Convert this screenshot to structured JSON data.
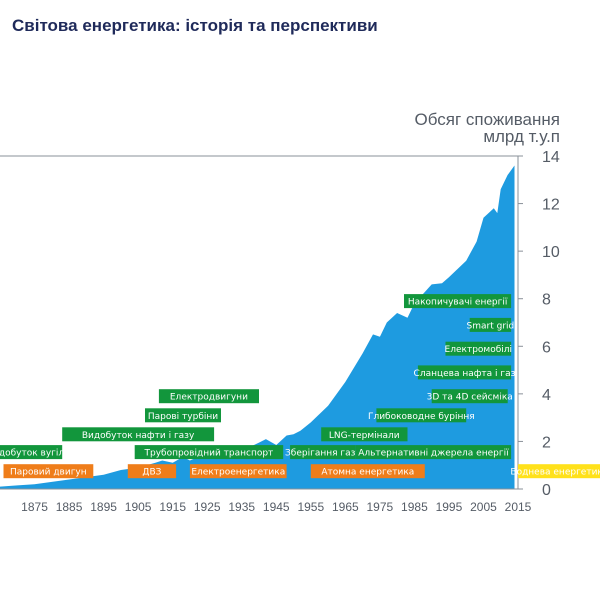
{
  "page": {
    "title": "Світова енергетика: історія та перспективи"
  },
  "chart_data": {
    "type": "area",
    "ylabel_lines": [
      "Обсяг споживання",
      "млрд  т.у.п"
    ],
    "xlim": [
      1865,
      2015
    ],
    "ylim": [
      0,
      14
    ],
    "x_ticks": [
      1875,
      1885,
      1895,
      1905,
      1915,
      1925,
      1935,
      1945,
      1955,
      1965,
      1975,
      1985,
      1995,
      2005,
      2015
    ],
    "y_ticks": [
      0,
      2,
      4,
      6,
      8,
      10,
      12,
      14
    ],
    "grid": false,
    "series": [
      {
        "color": "#1e9be0",
        "x": [
          1865,
          1870,
          1875,
          1880,
          1885,
          1890,
          1895,
          1900,
          1905,
          1910,
          1912,
          1915,
          1918,
          1920,
          1925,
          1930,
          1932,
          1935,
          1940,
          1942,
          1945,
          1948,
          1950,
          1952,
          1955,
          1960,
          1965,
          1970,
          1973,
          1975,
          1977,
          1980,
          1983,
          1985,
          1990,
          1993,
          1995,
          2000,
          2003,
          2005,
          2008,
          2009,
          2010,
          2012,
          2014
        ],
        "values": [
          0.1,
          0.15,
          0.2,
          0.3,
          0.4,
          0.5,
          0.6,
          0.8,
          0.9,
          1.1,
          1.2,
          1.1,
          1.35,
          1.2,
          1.5,
          1.6,
          1.4,
          1.6,
          1.95,
          2.1,
          1.85,
          2.25,
          2.3,
          2.45,
          2.8,
          3.5,
          4.5,
          5.7,
          6.5,
          6.4,
          7.0,
          7.4,
          7.2,
          7.8,
          8.6,
          8.65,
          8.9,
          9.6,
          10.4,
          11.4,
          11.8,
          11.6,
          12.6,
          13.2,
          13.6
        ]
      }
    ],
    "annotations": [
      {
        "text": "Видобуток вугілля",
        "x_start": 1865,
        "x_end": 1883,
        "y": 1.55,
        "color": "#12963c"
      },
      {
        "text": "Видобуток нафти і газу",
        "x_start": 1883,
        "x_end": 1927,
        "y": 2.3,
        "color": "#12963c"
      },
      {
        "text": "Парові турбіни",
        "x_start": 1907,
        "x_end": 1929,
        "y": 3.1,
        "color": "#12963c"
      },
      {
        "text": "Електродвигуни",
        "x_start": 1911,
        "x_end": 1940,
        "y": 3.9,
        "color": "#12963c"
      },
      {
        "text": "Трубопровідний транспорт",
        "x_start": 1904,
        "x_end": 1947,
        "y": 1.55,
        "color": "#12963c"
      },
      {
        "text": "Зберігання газу",
        "x_start": 1949,
        "x_end": 1968,
        "y": 1.55,
        "color": "#12963c"
      },
      {
        "text": "Альтернативні джерела енергії",
        "x_start": 1968,
        "x_end": 2013,
        "y": 1.55,
        "color": "#12963c"
      },
      {
        "text": "LNG-термінали",
        "x_start": 1958,
        "x_end": 1983,
        "y": 2.3,
        "color": "#12963c"
      },
      {
        "text": "Глибоководне буріння",
        "x_start": 1974,
        "x_end": 2000,
        "y": 3.1,
        "color": "#12963c"
      },
      {
        "text": "3D та 4D сейсміка",
        "x_start": 1990,
        "x_end": 2012,
        "y": 3.9,
        "color": "#12963c"
      },
      {
        "text": "Сланцева нафта і газ",
        "x_start": 1986,
        "x_end": 2013,
        "y": 4.9,
        "color": "#12963c"
      },
      {
        "text": "Електромобілі",
        "x_start": 1994,
        "x_end": 2013,
        "y": 5.9,
        "color": "#12963c"
      },
      {
        "text": "Smart grid",
        "x_start": 2001,
        "x_end": 2013,
        "y": 6.9,
        "color": "#12963c"
      },
      {
        "text": "Накопичувачі енергії",
        "x_start": 1982,
        "x_end": 2013,
        "y": 7.9,
        "color": "#12963c"
      },
      {
        "text": "Паровий двигун",
        "x_start": 1866,
        "x_end": 1892,
        "y": 0.75,
        "color": "#ef7d1a"
      },
      {
        "text": "ДВЗ",
        "x_start": 1902,
        "x_end": 1916,
        "y": 0.75,
        "color": "#ef7d1a"
      },
      {
        "text": "Електроенергетика",
        "x_start": 1920,
        "x_end": 1948,
        "y": 0.75,
        "color": "#ef7d1a"
      },
      {
        "text": "Атомна енергетика",
        "x_start": 1955,
        "x_end": 1988,
        "y": 0.75,
        "color": "#ef7d1a"
      },
      {
        "text": "Воднева енергетика",
        "x_start": 2015,
        "x_end": 2039,
        "y": 0.75,
        "color": "#ffe11a",
        "text_color": "#c9a800"
      }
    ]
  }
}
